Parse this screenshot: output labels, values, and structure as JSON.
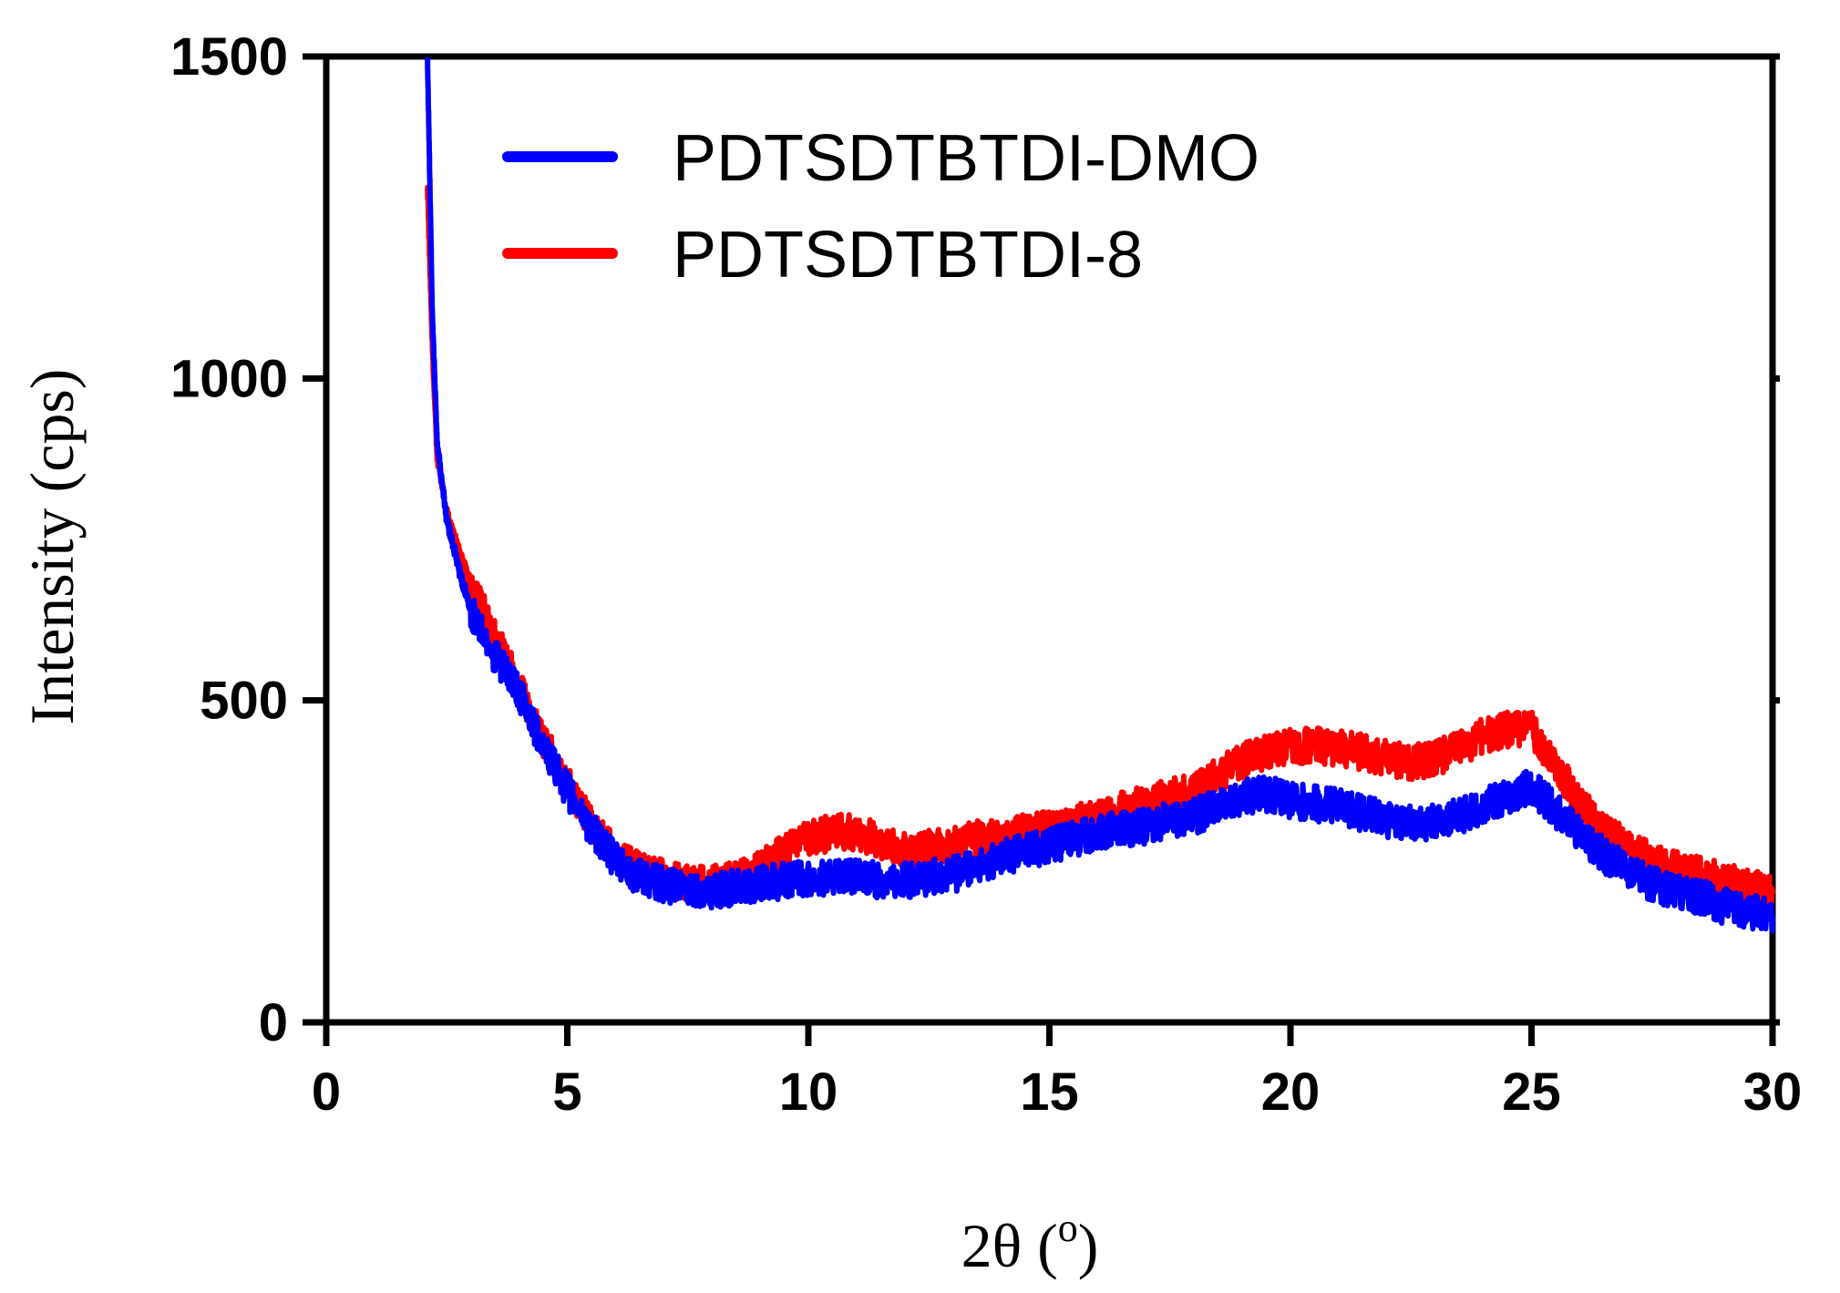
{
  "chart_data": {
    "type": "line",
    "title": "",
    "xlabel": "2θ (",
    "xlabel_sup": "o",
    "xlabel_end": ")",
    "ylabel": "Intensity (cps)",
    "xlim": [
      0,
      30
    ],
    "ylim": [
      0,
      1500
    ],
    "x_ticks": [
      0,
      5,
      10,
      15,
      20,
      25,
      30
    ],
    "y_ticks": [
      0,
      500,
      1000,
      1500
    ],
    "x_tick_labels": [
      "0",
      "5",
      "10",
      "15",
      "20",
      "25",
      "30"
    ],
    "y_tick_labels": [
      "0",
      "500",
      "1000",
      "1500"
    ],
    "grid": false,
    "legend_position": "top-center",
    "x": [
      2.1,
      2.2,
      2.3,
      2.5,
      2.8,
      3.0,
      3.5,
      4.0,
      4.5,
      5.0,
      5.5,
      6.0,
      6.5,
      7.0,
      7.5,
      8.0,
      8.5,
      9.0,
      9.5,
      10.0,
      10.5,
      11.0,
      11.5,
      12.0,
      12.5,
      13.0,
      13.5,
      14.0,
      14.5,
      15.0,
      15.5,
      16.0,
      16.5,
      17.0,
      17.5,
      18.0,
      18.5,
      19.0,
      19.5,
      20.0,
      20.5,
      21.0,
      21.5,
      22.0,
      22.5,
      23.0,
      23.5,
      24.0,
      24.5,
      25.0,
      25.5,
      26.0,
      26.5,
      27.0,
      27.5,
      28.0,
      28.5,
      29.0,
      29.5,
      30.0
    ],
    "series": [
      {
        "name": "PDTSDTBTDI-DMO",
        "color": "#0000ff",
        "values": [
          1500,
          1100,
          900,
          780,
          690,
          640,
          570,
          510,
          430,
          360,
          300,
          250,
          225,
          215,
          205,
          205,
          210,
          215,
          220,
          225,
          225,
          225,
          220,
          220,
          225,
          230,
          240,
          255,
          265,
          275,
          285,
          295,
          300,
          305,
          315,
          320,
          335,
          350,
          355,
          345,
          340,
          335,
          325,
          315,
          310,
          310,
          320,
          335,
          350,
          365,
          330,
          290,
          260,
          235,
          215,
          205,
          195,
          180,
          170,
          165
        ]
      },
      {
        "name": "PDTSDTBTDI-8",
        "color": "#ff0000",
        "values": [
          1300,
          1050,
          880,
          790,
          720,
          680,
          600,
          520,
          440,
          370,
          310,
          260,
          235,
          225,
          215,
          215,
          225,
          240,
          265,
          285,
          295,
          295,
          280,
          265,
          270,
          275,
          285,
          290,
          295,
          300,
          310,
          320,
          330,
          340,
          350,
          360,
          385,
          405,
          420,
          430,
          430,
          425,
          420,
          410,
          405,
          410,
          425,
          445,
          455,
          455,
          400,
          340,
          300,
          270,
          250,
          240,
          230,
          220,
          210,
          200
        ]
      }
    ]
  }
}
